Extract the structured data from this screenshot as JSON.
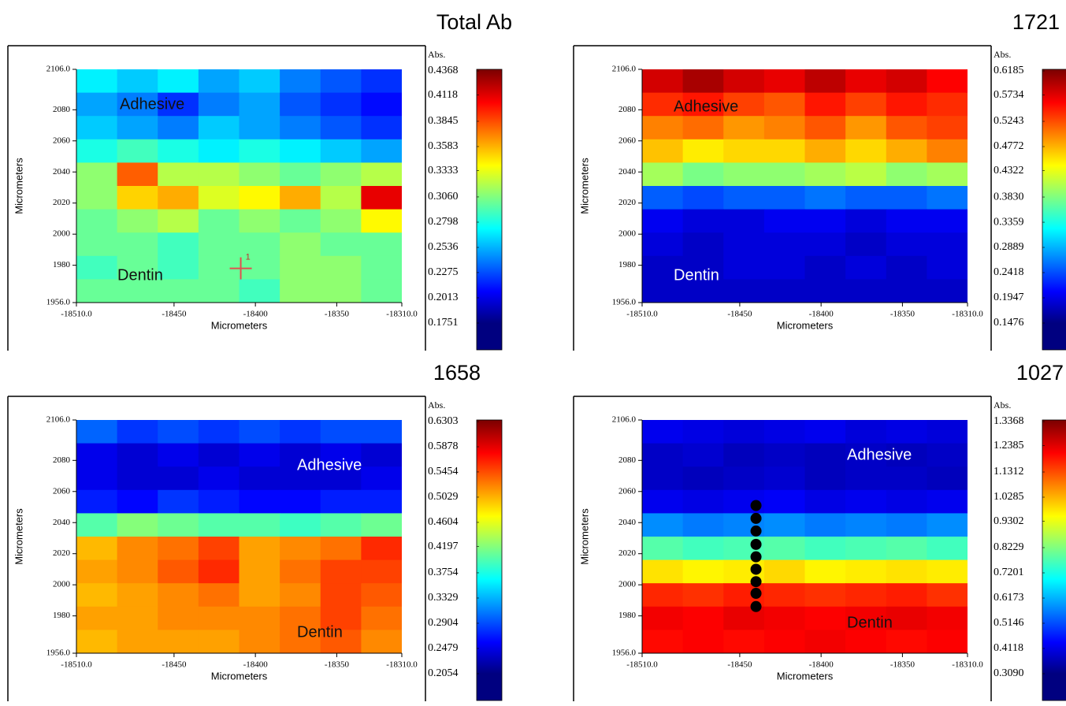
{
  "chart_data": [
    {
      "type": "heatmap",
      "title": "Total Ab",
      "xlabel": "Micrometers",
      "ylabel": "Micrometers",
      "colorbar_label": "Abs.",
      "colormap": "jet",
      "xlim": [
        -18510,
        -18310
      ],
      "ylim": [
        1956,
        2106
      ],
      "xticks": [
        {
          "value": -18510,
          "label": "-18510.0"
        },
        -18450,
        -18400,
        -18350,
        {
          "value": -18310,
          "label": "-18310.0"
        }
      ],
      "yticks": [
        {
          "value": 2106,
          "label": "2106.0"
        },
        2080,
        2060,
        2040,
        2020,
        2000,
        1980,
        {
          "value": 1956,
          "label": "1956.0"
        }
      ],
      "zlim": [
        0.1751,
        0.4368
      ],
      "zticks": [
        0.4368,
        0.4118,
        0.3845,
        0.3583,
        0.3333,
        {
          "value": 0.306,
          "label": "0.3060"
        },
        0.2798,
        0.2536,
        0.2275,
        0.2013,
        0.1751
      ],
      "x": [
        -18497.5,
        -18472.5,
        -18447.5,
        -18422.5,
        -18397.5,
        -18372.5,
        -18347.5,
        -18322.5
      ],
      "y": [
        2098.5,
        2083.5,
        2068.5,
        2053.5,
        2038.5,
        2023.5,
        2008.5,
        1993.5,
        1978.5,
        1963.5
      ],
      "z": [
        [
          0.27,
          0.26,
          0.27,
          0.25,
          0.26,
          0.24,
          0.23,
          0.22
        ],
        [
          0.25,
          0.24,
          0.22,
          0.24,
          0.25,
          0.23,
          0.22,
          0.21
        ],
        [
          0.26,
          0.25,
          0.24,
          0.26,
          0.25,
          0.24,
          0.23,
          0.22
        ],
        [
          0.28,
          0.29,
          0.28,
          0.27,
          0.28,
          0.27,
          0.26,
          0.25
        ],
        [
          0.31,
          0.38,
          0.32,
          0.32,
          0.31,
          0.3,
          0.31,
          0.32
        ],
        [
          0.31,
          0.35,
          0.36,
          0.33,
          0.34,
          0.36,
          0.32,
          0.41
        ],
        [
          0.3,
          0.31,
          0.32,
          0.3,
          0.31,
          0.3,
          0.31,
          0.34
        ],
        [
          0.3,
          0.3,
          0.29,
          0.3,
          0.3,
          0.31,
          0.3,
          0.3
        ],
        [
          0.29,
          0.3,
          0.29,
          0.3,
          0.3,
          0.31,
          0.31,
          0.3
        ],
        [
          0.3,
          0.3,
          0.3,
          0.3,
          0.29,
          0.31,
          0.31,
          0.3
        ]
      ],
      "annotations": [
        "Adhesive",
        "Dentin"
      ],
      "marker": {
        "label": "1",
        "x": -18409,
        "y": 1978
      }
    },
    {
      "type": "heatmap",
      "title": "1721",
      "xlabel": "Micrometers",
      "ylabel": "Micrometers",
      "colorbar_label": "Abs.",
      "colormap": "jet",
      "xlim": [
        -18510,
        -18310
      ],
      "ylim": [
        1956,
        2106
      ],
      "xticks": [
        {
          "value": -18510,
          "label": "-18510.0"
        },
        -18450,
        -18400,
        -18350,
        {
          "value": -18310,
          "label": "-18310.0"
        }
      ],
      "yticks": [
        {
          "value": 2106,
          "label": "2106.0"
        },
        2080,
        2060,
        2040,
        2020,
        2000,
        1980,
        {
          "value": 1956,
          "label": "1956.0"
        }
      ],
      "zlim": [
        0.1476,
        0.6185
      ],
      "zticks": [
        0.6185,
        0.5734,
        0.5243,
        0.4772,
        0.4322,
        {
          "value": 0.383,
          "label": "0.3830"
        },
        0.3359,
        0.2889,
        0.2418,
        0.1947,
        0.1476
      ],
      "x": [
        -18497.5,
        -18472.5,
        -18447.5,
        -18422.5,
        -18397.5,
        -18372.5,
        -18347.5,
        -18322.5
      ],
      "y": [
        2098.5,
        2083.5,
        2068.5,
        2053.5,
        2038.5,
        2023.5,
        2008.5,
        1993.5,
        1978.5,
        1963.5
      ],
      "z": [
        [
          0.58,
          0.6,
          0.58,
          0.57,
          0.59,
          0.57,
          0.58,
          0.56
        ],
        [
          0.54,
          0.55,
          0.53,
          0.52,
          0.55,
          0.53,
          0.55,
          0.54
        ],
        [
          0.5,
          0.51,
          0.49,
          0.5,
          0.52,
          0.49,
          0.52,
          0.53
        ],
        [
          0.47,
          0.45,
          0.46,
          0.46,
          0.48,
          0.46,
          0.48,
          0.5
        ],
        [
          0.4,
          0.38,
          0.39,
          0.39,
          0.4,
          0.41,
          0.39,
          0.4
        ],
        [
          0.25,
          0.24,
          0.25,
          0.25,
          0.26,
          0.25,
          0.25,
          0.26
        ],
        [
          0.2,
          0.19,
          0.19,
          0.2,
          0.2,
          0.19,
          0.2,
          0.2
        ],
        [
          0.19,
          0.18,
          0.19,
          0.19,
          0.19,
          0.18,
          0.19,
          0.19
        ],
        [
          0.18,
          0.18,
          0.19,
          0.19,
          0.18,
          0.19,
          0.18,
          0.19
        ],
        [
          0.18,
          0.18,
          0.18,
          0.18,
          0.18,
          0.18,
          0.18,
          0.18
        ]
      ],
      "annotations": [
        "Adhesive",
        "Dentin"
      ]
    },
    {
      "type": "heatmap",
      "title": "1658",
      "xlabel": "Micrometers",
      "ylabel": "Micrometers",
      "colorbar_label": "Abs.",
      "colormap": "jet",
      "xlim": [
        -18510,
        -18310
      ],
      "ylim": [
        1956,
        2106
      ],
      "xticks": [
        {
          "value": -18510,
          "label": "-18510.0"
        },
        -18450,
        -18400,
        -18350,
        {
          "value": -18310,
          "label": "-18310.0"
        }
      ],
      "yticks": [
        {
          "value": 2106,
          "label": "2106.0"
        },
        2080,
        2060,
        2040,
        2020,
        2000,
        1980,
        {
          "value": 1956,
          "label": "1956.0"
        }
      ],
      "zlim": [
        0.2054,
        0.6303
      ],
      "zticks": [
        0.6303,
        0.5878,
        0.5454,
        0.5029,
        0.4604,
        0.4197,
        0.3754,
        0.3329,
        0.2904,
        0.2479,
        0.2054
      ],
      "x": [
        -18497.5,
        -18472.5,
        -18447.5,
        -18422.5,
        -18397.5,
        -18372.5,
        -18347.5,
        -18322.5
      ],
      "y": [
        2098.5,
        2083.5,
        2068.5,
        2053.5,
        2038.5,
        2023.5,
        2008.5,
        1993.5,
        1978.5,
        1963.5
      ],
      "z": [
        [
          0.3,
          0.28,
          0.29,
          0.28,
          0.29,
          0.28,
          0.29,
          0.29
        ],
        [
          0.25,
          0.24,
          0.25,
          0.24,
          0.25,
          0.24,
          0.25,
          0.24
        ],
        [
          0.25,
          0.24,
          0.24,
          0.25,
          0.24,
          0.24,
          0.24,
          0.25
        ],
        [
          0.27,
          0.26,
          0.28,
          0.27,
          0.26,
          0.26,
          0.27,
          0.27
        ],
        [
          0.4,
          0.42,
          0.41,
          0.4,
          0.4,
          0.39,
          0.4,
          0.41
        ],
        [
          0.5,
          0.52,
          0.53,
          0.55,
          0.51,
          0.52,
          0.53,
          0.56
        ],
        [
          0.51,
          0.52,
          0.54,
          0.56,
          0.51,
          0.53,
          0.55,
          0.55
        ],
        [
          0.5,
          0.51,
          0.52,
          0.53,
          0.51,
          0.52,
          0.55,
          0.54
        ],
        [
          0.51,
          0.51,
          0.52,
          0.52,
          0.52,
          0.53,
          0.55,
          0.53
        ],
        [
          0.5,
          0.51,
          0.51,
          0.51,
          0.52,
          0.53,
          0.54,
          0.52
        ]
      ],
      "annotations": [
        "Adhesive",
        "Dentin"
      ]
    },
    {
      "type": "heatmap",
      "title": "1027",
      "xlabel": "Micrometers",
      "ylabel": "Micrometers",
      "colorbar_label": "Abs.",
      "colormap": "jet",
      "xlim": [
        -18510,
        -18310
      ],
      "ylim": [
        1956,
        2106
      ],
      "xticks": [
        {
          "value": -18510,
          "label": "-18510.0"
        },
        -18450,
        -18400,
        -18350,
        {
          "value": -18310,
          "label": "-18310.0"
        }
      ],
      "yticks": [
        {
          "value": 2106,
          "label": "2106.0"
        },
        2080,
        2060,
        2040,
        2020,
        2000,
        1980,
        {
          "value": 1956,
          "label": "1956.0"
        }
      ],
      "zlim": [
        0.309,
        1.3368
      ],
      "zticks": [
        1.3368,
        1.2385,
        1.1312,
        1.0285,
        0.9302,
        0.8229,
        0.7201,
        0.6173,
        0.5146,
        0.4118,
        {
          "value": 0.309,
          "label": "0.3090"
        }
      ],
      "x": [
        -18497.5,
        -18472.5,
        -18447.5,
        -18422.5,
        -18397.5,
        -18372.5,
        -18347.5,
        -18322.5
      ],
      "y": [
        2098.5,
        2083.5,
        2068.5,
        2053.5,
        2038.5,
        2023.5,
        2008.5,
        1993.5,
        1978.5,
        1963.5
      ],
      "z": [
        [
          0.42,
          0.41,
          0.4,
          0.41,
          0.42,
          0.4,
          0.41,
          0.4
        ],
        [
          0.38,
          0.39,
          0.37,
          0.38,
          0.37,
          0.38,
          0.37,
          0.38
        ],
        [
          0.38,
          0.37,
          0.38,
          0.39,
          0.37,
          0.38,
          0.38,
          0.37
        ],
        [
          0.42,
          0.41,
          0.42,
          0.43,
          0.41,
          0.42,
          0.41,
          0.42
        ],
        [
          0.58,
          0.56,
          0.57,
          0.58,
          0.56,
          0.57,
          0.56,
          0.58
        ],
        [
          0.78,
          0.76,
          0.77,
          0.78,
          0.76,
          0.77,
          0.78,
          0.76
        ],
        [
          0.98,
          0.96,
          0.97,
          0.99,
          0.96,
          0.97,
          0.98,
          0.97
        ],
        [
          1.17,
          1.16,
          1.18,
          1.17,
          1.16,
          1.17,
          1.18,
          1.16
        ],
        [
          1.22,
          1.21,
          1.23,
          1.22,
          1.21,
          1.22,
          1.23,
          1.22
        ],
        [
          1.2,
          1.21,
          1.2,
          1.21,
          1.22,
          1.21,
          1.2,
          1.21
        ]
      ],
      "annotations": [
        "Adhesive",
        "Dentin"
      ],
      "points": {
        "x": [
          -18440,
          -18440,
          -18440,
          -18440,
          -18440,
          -18440,
          -18440,
          -18440,
          -18440
        ],
        "y": [
          2051,
          2042.7,
          2034.6,
          2026,
          2018,
          2010,
          2002,
          1994.5,
          1986
        ]
      }
    }
  ]
}
